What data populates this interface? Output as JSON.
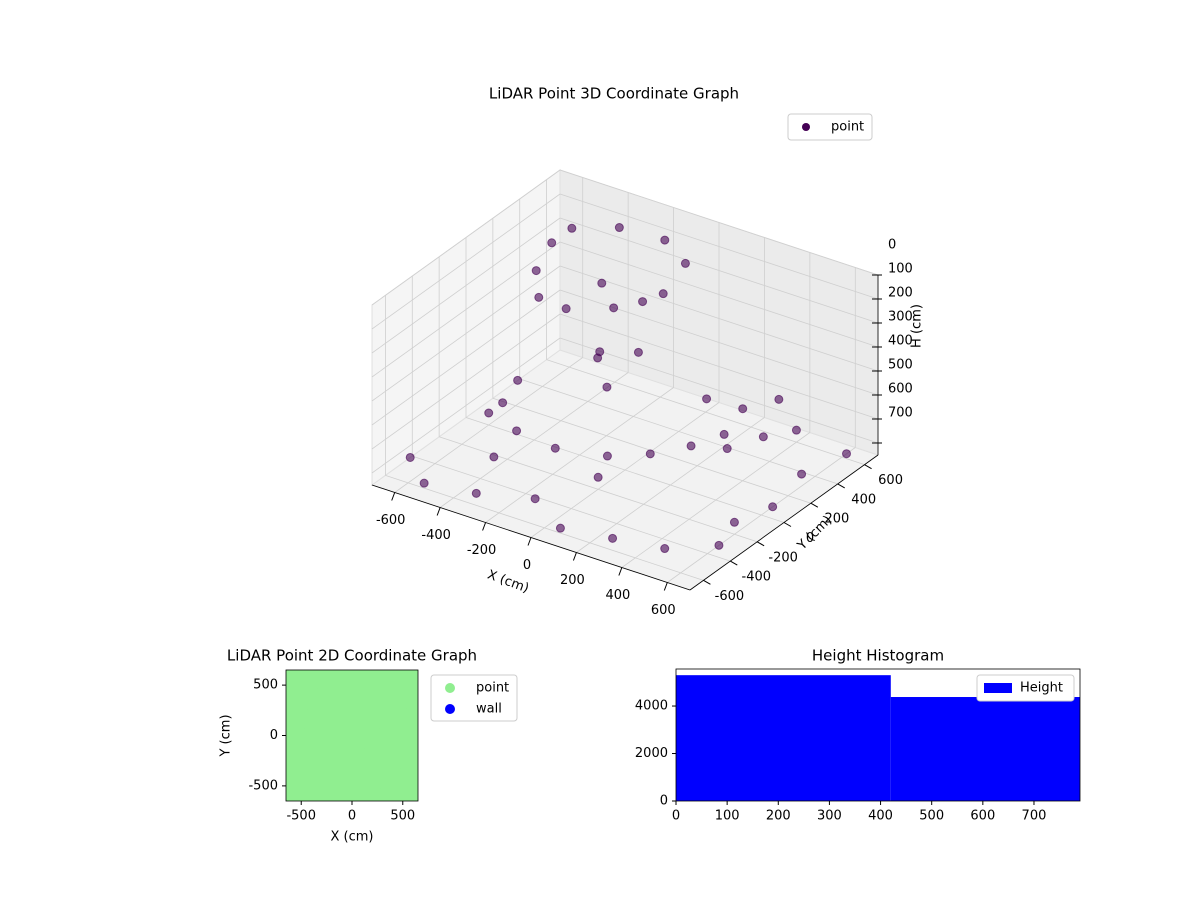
{
  "chart_data": [
    {
      "type": "scatter3d",
      "title": "LiDAR Point 3D Coordinate Graph",
      "xlabel": "X (cm)",
      "ylabel": "Y (cm)",
      "zlabel": "H (cm)",
      "xlim": [
        -700,
        700
      ],
      "ylim": [
        -700,
        700
      ],
      "zlim": [
        750,
        0
      ],
      "xticks": [
        -600,
        -400,
        -200,
        0,
        200,
        400,
        600
      ],
      "yticks": [
        -600,
        -400,
        -200,
        0,
        200,
        400,
        600
      ],
      "zticks": [
        0,
        100,
        200,
        300,
        400,
        500,
        600,
        700
      ],
      "legend": "upper right",
      "series": [
        {
          "name": "point",
          "color": "#440154",
          "x": [
            -500,
            -450,
            -350,
            -200,
            -50,
            50,
            0,
            -150,
            -350,
            -500,
            -250,
            -100,
            -150,
            -50,
            0,
            -200,
            -450,
            -300,
            -100,
            100,
            200,
            300,
            400,
            500,
            350,
            450,
            550,
            -650,
            -500,
            -300,
            -100,
            100,
            300,
            500,
            650,
            600,
            650,
            600,
            650,
            -600,
            -650,
            -400,
            0,
            200,
            400
          ],
          "y": [
            300,
            100,
            -50,
            -100,
            0,
            200,
            450,
            550,
            550,
            450,
            250,
            300,
            50,
            -50,
            100,
            150,
            -150,
            -300,
            -350,
            -300,
            -150,
            100,
            200,
            300,
            -100,
            0,
            100,
            -500,
            -650,
            -600,
            -500,
            -650,
            -600,
            -550,
            -400,
            -200,
            0,
            300,
            550,
            0,
            300,
            -300,
            -200,
            400,
            600
          ],
          "h": [
            80,
            100,
            120,
            100,
            90,
            80,
            70,
            60,
            70,
            80,
            150,
            200,
            350,
            400,
            300,
            380,
            550,
            560,
            550,
            540,
            560,
            400,
            450,
            420,
            500,
            520,
            480,
            700,
            700,
            700,
            700,
            700,
            700,
            700,
            700,
            700,
            700,
            700,
            700,
            700,
            700,
            700,
            700,
            700,
            700
          ]
        }
      ]
    },
    {
      "type": "scatter",
      "title": "LiDAR Point 2D Coordinate Graph",
      "xlabel": "X (cm)",
      "ylabel": "Y (cm)",
      "xlim": [
        -650,
        650
      ],
      "ylim": [
        -650,
        650
      ],
      "xticks": [
        -500,
        0,
        500
      ],
      "yticks": [
        -500,
        0,
        500
      ],
      "legend": "outside right",
      "series": [
        {
          "name": "point",
          "color": "#90ee90",
          "x": [
            -600,
            -400,
            -200,
            0,
            200,
            400,
            600,
            -600,
            -400,
            -200,
            0,
            200,
            400,
            600,
            -600,
            -400,
            -200,
            0,
            200,
            400,
            600,
            -600,
            -400,
            -200,
            0,
            200,
            400,
            600,
            -600,
            -400,
            -200,
            0,
            200,
            400,
            600,
            -600,
            -400,
            -200,
            0,
            200,
            400,
            600,
            -600,
            -400,
            -200,
            0,
            200,
            400,
            600
          ],
          "y": [
            -600,
            -600,
            -600,
            -600,
            -600,
            -600,
            -600,
            -400,
            -400,
            -400,
            -400,
            -400,
            -400,
            -400,
            -200,
            -200,
            -200,
            -200,
            -200,
            -200,
            -200,
            0,
            0,
            0,
            0,
            0,
            0,
            0,
            200,
            200,
            200,
            200,
            200,
            200,
            200,
            400,
            400,
            400,
            400,
            400,
            400,
            400,
            600,
            600,
            600,
            600,
            600,
            600,
            600
          ]
        },
        {
          "name": "wall",
          "color": "#0000ff",
          "x": [],
          "y": []
        }
      ]
    },
    {
      "type": "histogram",
      "title": "Height Histogram",
      "bins": [
        0,
        420,
        790
      ],
      "series": [
        {
          "name": "Height",
          "color": "#0000ff",
          "values": [
            5300,
            4380
          ]
        }
      ],
      "xlim": [
        0,
        790
      ],
      "ylim": [
        0,
        5560
      ],
      "xticks": [
        0,
        100,
        200,
        300,
        400,
        500,
        600,
        700
      ],
      "yticks": [
        0,
        2000,
        4000
      ],
      "legend": "upper right"
    }
  ]
}
